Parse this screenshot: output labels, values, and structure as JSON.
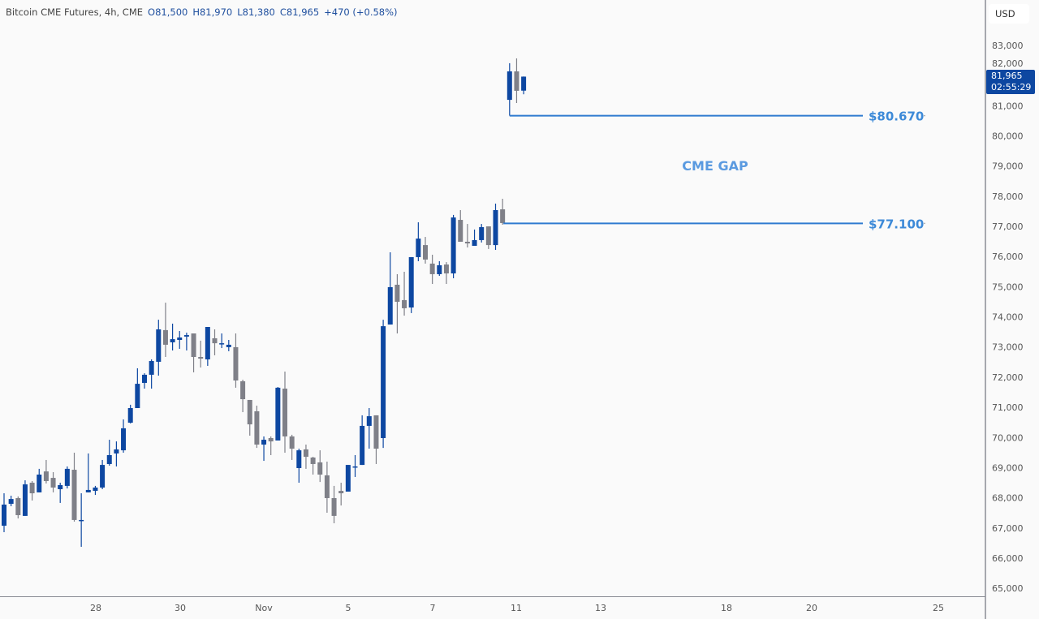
{
  "header": {
    "symbol": "Bitcoin CME Futures, 4h, CME",
    "open": "O81,500",
    "high": "H81,970",
    "low": "L81,380",
    "close": "C81,965",
    "change": "+470 (+0.58%)"
  },
  "price_axis": {
    "currency_button": "USD",
    "last_price": "81,965",
    "countdown": "02:55:29"
  },
  "colors": {
    "up": "#0d47a1",
    "down": "#7f8088",
    "level_line": "#2f7bd0",
    "background": "#fafafa"
  },
  "chart_data": {
    "type": "candlestick",
    "title": "Bitcoin CME Futures, 4h, CME",
    "interval": "4h",
    "ylim": [
      64700,
      84000
    ],
    "y_ticks": [
      "65,000",
      "66,000",
      "67,000",
      "68,000",
      "69,000",
      "70,000",
      "71,000",
      "72,000",
      "73,000",
      "74,000",
      "75,000",
      "76,000",
      "77,000",
      "78,000",
      "79,000",
      "80,000",
      "81,000",
      "82,000",
      "83,000"
    ],
    "x_ticks": [
      "28",
      "30",
      "Nov",
      "5",
      "7",
      "11",
      "13",
      "18",
      "20",
      "25"
    ],
    "grid": false,
    "ohlc_fields": [
      "open",
      "high",
      "low",
      "close"
    ],
    "candles": [
      [
        67075,
        68150,
        66860,
        67775
      ],
      [
        67800,
        68070,
        67720,
        67960
      ],
      [
        67990,
        68045,
        67315,
        67425
      ],
      [
        67400,
        68580,
        67400,
        68445
      ],
      [
        68500,
        68555,
        67910,
        68150
      ],
      [
        68180,
        68960,
        68180,
        68770
      ],
      [
        68875,
        69255,
        68475,
        68555
      ],
      [
        68660,
        68850,
        68180,
        68340
      ],
      [
        68285,
        68500,
        67830,
        68420
      ],
      [
        68395,
        69040,
        68310,
        68960
      ],
      [
        68930,
        69495,
        67210,
        67265
      ],
      [
        67265,
        68150,
        66375,
        67265
      ],
      [
        68180,
        69470,
        68180,
        68260
      ],
      [
        68230,
        68395,
        68095,
        68340
      ],
      [
        68340,
        69255,
        68285,
        69090
      ],
      [
        69120,
        69925,
        69065,
        69415
      ],
      [
        69470,
        69870,
        69040,
        69605
      ],
      [
        69575,
        70600,
        69495,
        70305
      ],
      [
        70490,
        71085,
        70465,
        70975
      ],
      [
        70975,
        72295,
        70975,
        71780
      ],
      [
        71810,
        72130,
        71620,
        72080
      ],
      [
        72080,
        72590,
        71620,
        72535
      ],
      [
        72510,
        73905,
        72050,
        73585
      ],
      [
        73560,
        74470,
        72670,
        73075
      ],
      [
        73155,
        73775,
        72885,
        73260
      ],
      [
        73235,
        73530,
        72940,
        73315
      ],
      [
        73345,
        73475,
        72885,
        73395
      ],
      [
        73450,
        73450,
        72160,
        72670
      ],
      [
        72670,
        73210,
        72320,
        72615
      ],
      [
        72590,
        73665,
        72375,
        73665
      ],
      [
        73290,
        73585,
        72725,
        73125
      ],
      [
        73125,
        73450,
        72965,
        73125
      ],
      [
        72995,
        73235,
        72860,
        73075
      ],
      [
        72995,
        73450,
        71650,
        71890
      ],
      [
        71865,
        71915,
        70840,
        71270
      ],
      [
        71245,
        71245,
        70060,
        70435
      ],
      [
        70870,
        71055,
        69655,
        69765
      ],
      [
        69765,
        70035,
        69225,
        69925
      ],
      [
        69980,
        70035,
        69415,
        69870
      ],
      [
        69900,
        71675,
        69900,
        71650
      ],
      [
        71620,
        72185,
        69495,
        70035
      ],
      [
        70035,
        70090,
        69255,
        69630
      ],
      [
        68985,
        69630,
        68500,
        69575
      ],
      [
        69605,
        69765,
        68960,
        69360
      ],
      [
        69335,
        69360,
        68770,
        69120
      ],
      [
        69175,
        69575,
        68525,
        68770
      ],
      [
        68745,
        69200,
        67505,
        67990
      ],
      [
        67990,
        68395,
        67155,
        67400
      ],
      [
        68230,
        68500,
        67745,
        68150
      ],
      [
        68205,
        69090,
        68205,
        69090
      ],
      [
        69040,
        69415,
        68690,
        69040
      ],
      [
        69090,
        70735,
        69090,
        70385
      ],
      [
        70385,
        70975,
        69630,
        70705
      ],
      [
        70735,
        70735,
        69120,
        69630
      ],
      [
        69980,
        73905,
        69655,
        73690
      ],
      [
        73745,
        76140,
        73745,
        74985
      ],
      [
        75065,
        75415,
        73450,
        74500
      ],
      [
        74555,
        75495,
        74040,
        74285
      ],
      [
        74310,
        75980,
        74125,
        75980
      ],
      [
        75980,
        77135,
        75845,
        76595
      ],
      [
        76380,
        76650,
        75765,
        75900
      ],
      [
        75765,
        76060,
        75090,
        75415
      ],
      [
        75415,
        75845,
        75360,
        75710
      ],
      [
        75735,
        75815,
        75090,
        75440
      ],
      [
        75440,
        77380,
        75280,
        77295
      ],
      [
        77215,
        77540,
        76490,
        76490
      ],
      [
        76490,
        77080,
        76300,
        76435
      ],
      [
        76355,
        76895,
        76355,
        76545
      ],
      [
        76545,
        77080,
        76465,
        76975
      ],
      [
        77000,
        77000,
        76250,
        76380
      ],
      [
        76380,
        77755,
        76220,
        77540
      ],
      [
        77565,
        77915,
        77055,
        77110
      ],
      [
        81195,
        82410,
        80670,
        82140
      ],
      [
        82140,
        82570,
        81090,
        81495
      ],
      [
        81500,
        81970,
        81380,
        81965
      ]
    ],
    "annotations": {
      "upper_level": {
        "value": 80670,
        "label": "$80.670"
      },
      "lower_level": {
        "value": 77100,
        "label": "$77.100"
      },
      "gap_label": "CME GAP"
    }
  }
}
